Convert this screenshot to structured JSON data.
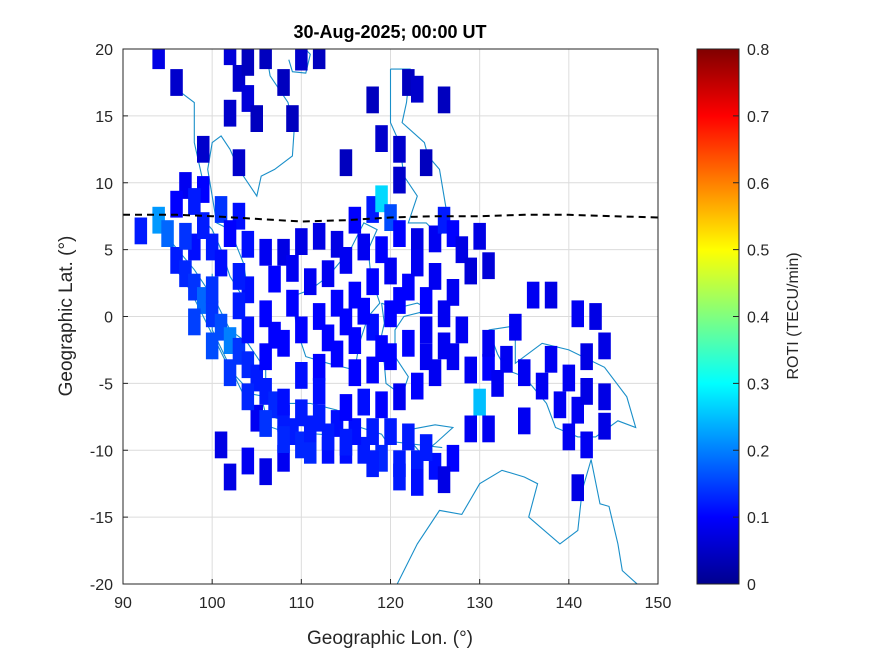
{
  "chart_data": {
    "type": "heatmap",
    "title": "30-Aug-2025; 00:00 UT",
    "xlabel": "Geographic Lon. (°)",
    "ylabel": "Geographic Lat. (°)",
    "xlim": [
      90,
      150
    ],
    "ylim": [
      -20,
      20
    ],
    "xticks": [
      90,
      100,
      110,
      120,
      130,
      140,
      150
    ],
    "yticks": [
      -20,
      -15,
      -10,
      -5,
      0,
      5,
      10,
      15,
      20
    ],
    "grid": true,
    "colormap": "jet",
    "colorbar": {
      "label": "ROTI (TECU/min)",
      "range": [
        0,
        0.8
      ],
      "ticks": [
        0,
        0.1,
        0.2,
        0.3,
        0.4,
        0.5,
        0.6,
        0.7,
        0.8
      ]
    },
    "magnetic_equator": {
      "style": "dashed",
      "color": "#000000",
      "lon": [
        90,
        96,
        100,
        105,
        110,
        115,
        120,
        125,
        130,
        135,
        140,
        145,
        150
      ],
      "lat": [
        7.6,
        7.6,
        7.5,
        7.3,
        7.1,
        7.2,
        7.4,
        7.5,
        7.5,
        7.6,
        7.6,
        7.5,
        7.4
      ]
    },
    "coastline_color": "#1a8fc9",
    "cell_size_deg": {
      "lon": 1.4,
      "lat": 2.0
    },
    "roti_cells": [
      [
        94,
        19.5,
        0.08
      ],
      [
        102,
        19.8,
        0.07
      ],
      [
        96,
        17.5,
        0.06
      ],
      [
        103,
        17.8,
        0.06
      ],
      [
        104,
        19.0,
        0.05
      ],
      [
        106,
        19.5,
        0.05
      ],
      [
        110,
        19.4,
        0.06
      ],
      [
        112,
        19.5,
        0.05
      ],
      [
        108,
        17.5,
        0.05
      ],
      [
        104,
        16.3,
        0.07
      ],
      [
        102,
        15.2,
        0.06
      ],
      [
        105,
        14.8,
        0.05
      ],
      [
        109,
        14.8,
        0.05
      ],
      [
        115,
        11.5,
        0.05
      ],
      [
        119,
        13.3,
        0.06
      ],
      [
        122,
        17.5,
        0.05
      ],
      [
        123,
        17.0,
        0.06
      ],
      [
        118,
        16.2,
        0.05
      ],
      [
        126,
        16.2,
        0.05
      ],
      [
        121,
        12.5,
        0.06
      ],
      [
        124,
        11.5,
        0.05
      ],
      [
        121,
        10.2,
        0.06
      ],
      [
        99,
        12.5,
        0.06
      ],
      [
        103,
        11.5,
        0.06
      ],
      [
        97,
        9.8,
        0.09
      ],
      [
        99,
        9.5,
        0.1
      ],
      [
        98,
        8.6,
        0.12
      ],
      [
        101,
        8.0,
        0.14
      ],
      [
        103,
        7.5,
        0.11
      ],
      [
        96,
        8.4,
        0.1
      ],
      [
        94,
        7.2,
        0.22
      ],
      [
        95,
        6.2,
        0.18
      ],
      [
        92,
        6.4,
        0.12
      ],
      [
        98,
        5.2,
        0.11
      ],
      [
        100,
        5.2,
        0.12
      ],
      [
        102,
        6.2,
        0.1
      ],
      [
        104,
        5.4,
        0.11
      ],
      [
        106,
        4.8,
        0.09
      ],
      [
        108,
        4.8,
        0.08
      ],
      [
        110,
        5.6,
        0.08
      ],
      [
        112,
        6.0,
        0.08
      ],
      [
        114,
        5.4,
        0.08
      ],
      [
        116,
        7.2,
        0.1
      ],
      [
        118,
        8.0,
        0.12
      ],
      [
        119,
        8.8,
        0.27
      ],
      [
        120,
        7.4,
        0.16
      ],
      [
        121,
        6.2,
        0.1
      ],
      [
        123,
        5.6,
        0.08
      ],
      [
        125,
        5.8,
        0.09
      ],
      [
        126,
        7.2,
        0.12
      ],
      [
        127,
        6.2,
        0.1
      ],
      [
        128,
        5.0,
        0.08
      ],
      [
        129,
        3.4,
        0.07
      ],
      [
        131,
        3.8,
        0.07
      ],
      [
        130,
        6.0,
        0.08
      ],
      [
        96,
        4.2,
        0.12
      ],
      [
        97,
        3.2,
        0.13
      ],
      [
        98,
        2.2,
        0.14
      ],
      [
        99,
        1.2,
        0.18
      ],
      [
        100,
        0.2,
        0.14
      ],
      [
        101,
        -0.8,
        0.16
      ],
      [
        102,
        -1.8,
        0.2
      ],
      [
        103,
        -2.6,
        0.14
      ],
      [
        104,
        -3.6,
        0.13
      ],
      [
        105,
        -4.6,
        0.12
      ],
      [
        106,
        -5.6,
        0.12
      ],
      [
        107,
        -6.6,
        0.13
      ],
      [
        108,
        -7.6,
        0.12
      ],
      [
        109,
        -8.6,
        0.12
      ],
      [
        110,
        -9.6,
        0.13
      ],
      [
        111,
        -10.0,
        0.13
      ],
      [
        113,
        -10.0,
        0.11
      ],
      [
        115,
        -10.0,
        0.11
      ],
      [
        117,
        -10.0,
        0.12
      ],
      [
        119,
        -10.6,
        0.13
      ],
      [
        121,
        -11.0,
        0.12
      ],
      [
        123,
        -11.0,
        0.12
      ],
      [
        125,
        -11.2,
        0.11
      ],
      [
        127,
        -10.6,
        0.1
      ],
      [
        124,
        -9.8,
        0.12
      ],
      [
        122,
        -9.0,
        0.12
      ],
      [
        120,
        -8.6,
        0.12
      ],
      [
        118,
        -8.6,
        0.12
      ],
      [
        116,
        -8.6,
        0.11
      ],
      [
        114,
        -8.0,
        0.11
      ],
      [
        112,
        -7.6,
        0.12
      ],
      [
        110,
        -7.2,
        0.12
      ],
      [
        108,
        -6.4,
        0.11
      ],
      [
        106,
        -3.0,
        0.1
      ],
      [
        108,
        -2.0,
        0.1
      ],
      [
        110,
        -1.0,
        0.1
      ],
      [
        112,
        0.0,
        0.1
      ],
      [
        114,
        1.0,
        0.1
      ],
      [
        116,
        1.6,
        0.1
      ],
      [
        118,
        2.6,
        0.1
      ],
      [
        120,
        3.4,
        0.09
      ],
      [
        122,
        2.2,
        0.1
      ],
      [
        124,
        1.2,
        0.1
      ],
      [
        120,
        0.2,
        0.1
      ],
      [
        118,
        -0.8,
        0.11
      ],
      [
        116,
        -1.8,
        0.1
      ],
      [
        114,
        -2.8,
        0.1
      ],
      [
        112,
        -3.8,
        0.1
      ],
      [
        110,
        -4.4,
        0.11
      ],
      [
        112,
        -5.6,
        0.11
      ],
      [
        116,
        -4.2,
        0.1
      ],
      [
        118,
        -4.0,
        0.1
      ],
      [
        120,
        -3.0,
        0.1
      ],
      [
        122,
        -2.0,
        0.1
      ],
      [
        124,
        -1.0,
        0.09
      ],
      [
        126,
        0.2,
        0.09
      ],
      [
        128,
        -1.0,
        0.09
      ],
      [
        127,
        -3.0,
        0.09
      ],
      [
        125,
        -4.2,
        0.09
      ],
      [
        123,
        -5.2,
        0.1
      ],
      [
        121,
        -6.0,
        0.09
      ],
      [
        129,
        -4.0,
        0.09
      ],
      [
        131,
        -3.8,
        0.1
      ],
      [
        130,
        -6.4,
        0.25
      ],
      [
        132,
        -5.0,
        0.09
      ],
      [
        133,
        -3.2,
        0.09
      ],
      [
        135,
        -4.2,
        0.09
      ],
      [
        137,
        -5.2,
        0.09
      ],
      [
        138,
        -3.2,
        0.09
      ],
      [
        140,
        -4.6,
        0.09
      ],
      [
        139,
        -6.6,
        0.09
      ],
      [
        141,
        -7.0,
        0.09
      ],
      [
        142,
        -5.6,
        0.08
      ],
      [
        144,
        -6.0,
        0.08
      ],
      [
        142,
        -3.0,
        0.08
      ],
      [
        141,
        0.2,
        0.09
      ],
      [
        143,
        0.0,
        0.08
      ],
      [
        144,
        -2.2,
        0.08
      ],
      [
        136,
        1.6,
        0.09
      ],
      [
        138,
        1.6,
        0.08
      ],
      [
        134,
        -0.8,
        0.09
      ],
      [
        131,
        -2.0,
        0.09
      ],
      [
        129,
        -8.4,
        0.09
      ],
      [
        131,
        -8.4,
        0.09
      ],
      [
        135,
        -7.8,
        0.09
      ],
      [
        140,
        -9.0,
        0.09
      ],
      [
        142,
        -9.6,
        0.09
      ],
      [
        144,
        -8.2,
        0.08
      ],
      [
        141,
        -12.8,
        0.08
      ],
      [
        101,
        -9.6,
        0.08
      ],
      [
        106,
        -11.6,
        0.08
      ],
      [
        108,
        -10.6,
        0.09
      ],
      [
        102,
        -12.0,
        0.08
      ],
      [
        126,
        -12.2,
        0.08
      ],
      [
        104,
        -10.8,
        0.09
      ],
      [
        100,
        2.0,
        0.14
      ],
      [
        104,
        2.0,
        0.11
      ],
      [
        106,
        0.2,
        0.1
      ],
      [
        104,
        -1.0,
        0.11
      ],
      [
        107,
        2.8,
        0.1
      ],
      [
        109,
        3.6,
        0.09
      ],
      [
        111,
        2.6,
        0.09
      ],
      [
        113,
        3.2,
        0.09
      ],
      [
        115,
        4.2,
        0.09
      ],
      [
        117,
        5.2,
        0.09
      ],
      [
        119,
        5.0,
        0.1
      ],
      [
        109,
        1.0,
        0.1
      ],
      [
        107,
        -1.4,
        0.1
      ],
      [
        105,
        -7.6,
        0.09
      ],
      [
        117,
        -6.4,
        0.11
      ],
      [
        115,
        -6.8,
        0.1
      ],
      [
        119,
        -6.6,
        0.1
      ],
      [
        113,
        -9.0,
        0.12
      ],
      [
        115,
        -9.4,
        0.12
      ],
      [
        118,
        -11.0,
        0.12
      ],
      [
        121,
        -12.0,
        0.12
      ],
      [
        123,
        -12.4,
        0.11
      ],
      [
        97,
        6.0,
        0.14
      ],
      [
        99,
        6.8,
        0.12
      ],
      [
        101,
        4.0,
        0.11
      ],
      [
        103,
        3.0,
        0.12
      ],
      [
        103,
        0.8,
        0.12
      ],
      [
        98,
        -0.4,
        0.15
      ],
      [
        100,
        -2.2,
        0.16
      ],
      [
        102,
        -4.2,
        0.14
      ],
      [
        104,
        -6.0,
        0.13
      ],
      [
        106,
        -8.0,
        0.14
      ],
      [
        108,
        -9.2,
        0.13
      ],
      [
        111,
        -8.4,
        0.12
      ],
      [
        124,
        -3.0,
        0.09
      ],
      [
        126,
        -2.2,
        0.09
      ],
      [
        127,
        1.8,
        0.09
      ],
      [
        125,
        3.0,
        0.09
      ],
      [
        123,
        4.0,
        0.09
      ],
      [
        113,
        -1.6,
        0.1
      ],
      [
        119,
        -2.4,
        0.1
      ],
      [
        121,
        1.2,
        0.1
      ],
      [
        117,
        0.4,
        0.1
      ],
      [
        115,
        -0.4,
        0.1
      ]
    ]
  }
}
